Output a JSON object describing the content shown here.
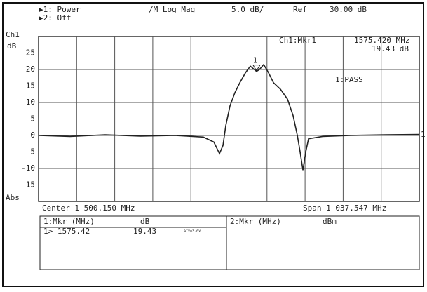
{
  "header": {
    "ch1_state": "▶1: Power",
    "ch2_state": "▶2: Off",
    "format": "/M Log Mag",
    "scale": "5.0 dB/",
    "ref_label": "Ref",
    "ref_value": "30.00 dB",
    "channel": "Ch1",
    "unit": "dB",
    "abs": "Abs",
    "marker_readout_label": "Ch1:Mkr1",
    "marker_readout_freq": "1575.420 MHz",
    "marker_readout_value": "19.43 dB",
    "limit_test": "1:PASS",
    "ref_marker": "1"
  },
  "chart_data": {
    "type": "line",
    "x": [
      981.4,
      1067.4,
      1162.9,
      1258.5,
      1354.0,
      1430.5,
      1459.1,
      1474.4,
      1484.0,
      1491.6,
      1503.1,
      1516.5,
      1529.9,
      1545.1,
      1558.5,
      1575.42,
      1583.4,
      1594.9,
      1608.2,
      1621.6,
      1640.7,
      1659.8,
      1675.1,
      1686.6,
      1694.2,
      1701.8,
      1709.5,
      1717.1,
      1755.3,
      1831.8,
      1927.3,
      2018.9
    ],
    "series": [
      {
        "name": "Ch1",
        "color": "#222222",
        "values": [
          0,
          -0.3,
          0.2,
          -0.2,
          0,
          -0.5,
          -2,
          -5.5,
          -3,
          3,
          9,
          13,
          16,
          19,
          21,
          19.43,
          20,
          21.5,
          19,
          16,
          14,
          11,
          6,
          0,
          -5,
          -10.5,
          -5,
          -1,
          -0.3,
          0,
          0.2,
          0.3
        ]
      }
    ],
    "xlim": [
      981.3765,
      2018.9235
    ],
    "ylim": [
      -20,
      30
    ],
    "yticks": [
      -15,
      -10,
      -5,
      0,
      5,
      10,
      15,
      20,
      25
    ],
    "grid": true,
    "marker": {
      "label": "1",
      "x": 1575.42,
      "y": 19.43
    },
    "center_label": "Center 1 500.150 MHz",
    "span_label": "Span 1 037.547 MHz"
  },
  "marker_table": {
    "left_header": "1:Mkr (MHz)",
    "left_unit": "dB",
    "left_row_marker": "1> 1575.42",
    "left_row_value": "19.43",
    "left_row_note": "AIV=3.0V",
    "right_header": "2:Mkr (MHz)",
    "right_unit": "dBm"
  }
}
